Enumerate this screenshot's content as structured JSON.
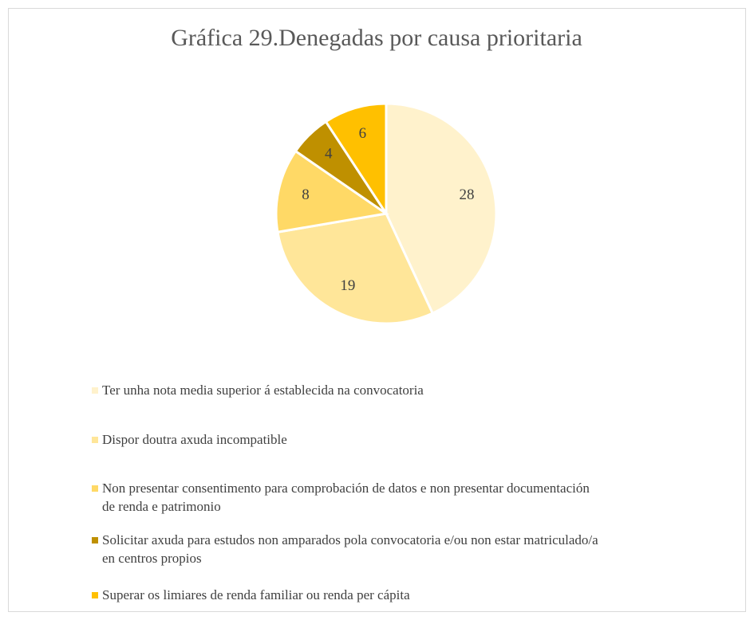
{
  "chart_data": {
    "type": "pie",
    "title": "Gráfica 29.Denegadas por causa prioritaria",
    "categories": [
      "Ter unha nota media superior á establecida na convocatoria",
      "Dispor doutra axuda incompatible",
      "Non presentar consentimento para comprobación de datos e non presentar documentación de renda e patrimonio",
      "Solicitar axuda para estudos non amparados pola convocatoria e/ou non estar matriculado/a en centros propios",
      "Superar os limiares de renda familiar ou renda per cápita"
    ],
    "values": [
      28,
      19,
      8,
      4,
      6
    ],
    "colors": [
      "#FFF2CC",
      "#FFE699",
      "#FFD966",
      "#BF9000",
      "#FFC000"
    ],
    "legend": "bottom"
  }
}
